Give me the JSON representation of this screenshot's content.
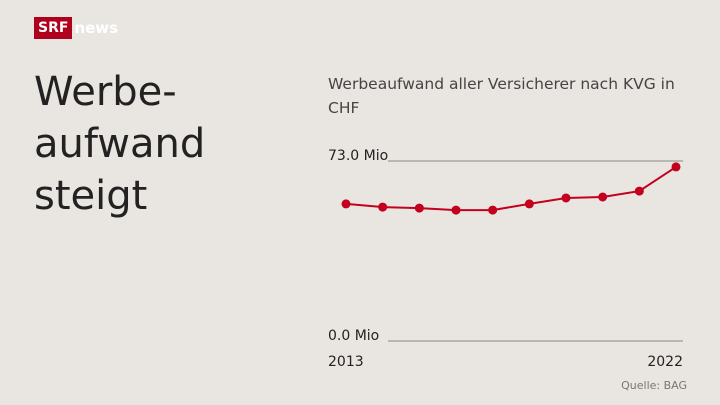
{
  "brand": {
    "logo": "SRF",
    "name": "news"
  },
  "headline": [
    "Werbe-",
    "aufwand",
    "steigt"
  ],
  "source": "Quelle: BAG",
  "chart_data": {
    "type": "line",
    "title": "Werbeaufwand aller Versicherer nach KVG in CHF",
    "x": [
      2013,
      2014,
      2015,
      2016,
      2017,
      2018,
      2019,
      2020,
      2021,
      2022
    ],
    "xlim": [
      2013,
      2022
    ],
    "xticks": [
      2013,
      2022
    ],
    "ylim": [
      0,
      73
    ],
    "yticks": [
      {
        "value": 0,
        "label": "0.0 Mio"
      },
      {
        "value": 73,
        "label": "73.0 Mio"
      }
    ],
    "grid": true,
    "series": [
      {
        "color": "#c4001f",
        "values": [
          55.6,
          54.3,
          53.9,
          53.1,
          53.1,
          55.6,
          58.0,
          58.4,
          60.8,
          70.6
        ]
      }
    ]
  }
}
